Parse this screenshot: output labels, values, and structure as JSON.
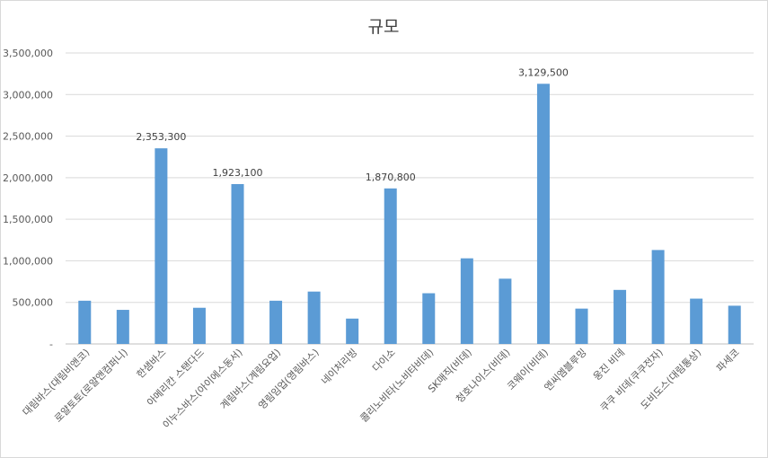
{
  "chart_data": {
    "type": "bar",
    "title": "규모",
    "xlabel": "",
    "ylabel": "",
    "categories": [
      "대림바스(대림비앤코)",
      "로얄토토(로얄앤컴퍼니)",
      "한샘바스",
      "아메리칸 스탠다드",
      "이누스바스(아이에스동서)",
      "계림바스(계림요업)",
      "영림임업(영림바스)",
      "네이처리빙",
      "다이소",
      "콜리노비타(노비타비데)",
      "SK매직(비데)",
      "청호나이스(비데)",
      "코웨이(비데)",
      "엔씨엠블루밍",
      "웅진 비데",
      "쿠쿠 비데(쿠쿠전자)",
      "도비도스(대림통상)",
      "파세코"
    ],
    "values": [
      520000,
      410000,
      2353300,
      435000,
      1923100,
      520000,
      630000,
      305000,
      1870800,
      610000,
      1030000,
      785000,
      3129500,
      425000,
      650000,
      1130000,
      545000,
      460000
    ],
    "data_labels": [
      "",
      "",
      "2,353,300",
      "",
      "1,923,100",
      "",
      "",
      "",
      "1,870,800",
      "",
      "",
      "",
      "3,129,500",
      "",
      "",
      "",
      "",
      ""
    ],
    "yticks": [
      "-",
      "500,000",
      "1,000,000",
      "1,500,000",
      "2,000,000",
      "2,500,000",
      "3,000,000",
      "3,500,000"
    ],
    "ylim": [
      0,
      3500000
    ],
    "grid": true,
    "legend": "none",
    "colors": {
      "bar": "#5B9BD5",
      "grid": "#d9d9d9",
      "axis": "#bfbfbf"
    }
  }
}
